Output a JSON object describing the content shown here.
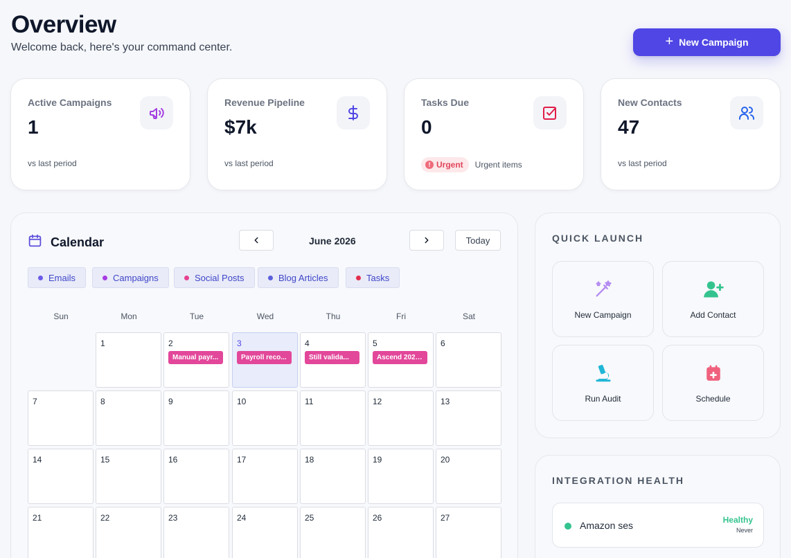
{
  "header": {
    "title": "Overview",
    "subtitle": "Welcome back, here's your command center.",
    "new_campaign_label": "New Campaign"
  },
  "stats": [
    {
      "label": "Active Campaigns",
      "value": "1",
      "foot": "vs last period",
      "icon": "megaphone-icon",
      "color": "#a43ee0"
    },
    {
      "label": "Revenue Pipeline",
      "value": "$7k",
      "foot": "vs last period",
      "icon": "dollar-icon",
      "color": "#4f46e5"
    },
    {
      "label": "Tasks Due",
      "value": "0",
      "badge": "Urgent",
      "badge_icon": "!",
      "foot": "Urgent items",
      "icon": "checkbox-icon",
      "color": "#e11d48"
    },
    {
      "label": "New Contacts",
      "value": "47",
      "foot": "vs last period",
      "icon": "users-icon",
      "color": "#2563eb"
    }
  ],
  "calendar": {
    "title": "Calendar",
    "month": "June 2026",
    "today_label": "Today",
    "filters": [
      {
        "label": "Emails",
        "color": "#6b5be8"
      },
      {
        "label": "Campaigns",
        "color": "#a63be3"
      },
      {
        "label": "Social Posts",
        "color": "#e5408f"
      },
      {
        "label": "Blog Articles",
        "color": "#5b5fdc"
      },
      {
        "label": "Tasks",
        "color": "#e22d4d"
      }
    ],
    "weekdays": [
      "Sun",
      "Mon",
      "Tue",
      "Wed",
      "Thu",
      "Fri",
      "Sat"
    ],
    "weeks": [
      [
        null,
        "1",
        "2",
        "3",
        "4",
        "5",
        "6"
      ],
      [
        "7",
        "8",
        "9",
        "10",
        "11",
        "12",
        "13"
      ],
      [
        "14",
        "15",
        "16",
        "17",
        "18",
        "19",
        "20"
      ],
      [
        "21",
        "22",
        "23",
        "24",
        "25",
        "26",
        "27"
      ]
    ],
    "today_day": "3",
    "events": [
      {
        "day": "2",
        "label": "Manual payr..."
      },
      {
        "day": "3",
        "label": "Payroll reco..."
      },
      {
        "day": "4",
        "label": "Still valida..."
      },
      {
        "day": "5",
        "label": "Ascend 2026 ..."
      }
    ]
  },
  "quick_launch": {
    "heading": "QUICK LAUNCH",
    "items": [
      {
        "label": "New Campaign",
        "icon": "magic-wand-icon",
        "color": "#b48cf2"
      },
      {
        "label": "Add Contact",
        "icon": "add-user-icon",
        "color": "#34c38f"
      },
      {
        "label": "Run Audit",
        "icon": "microscope-icon",
        "color": "#20b6d6"
      },
      {
        "label": "Schedule",
        "icon": "calendar-plus-icon",
        "color": "#f0617d"
      }
    ]
  },
  "integration_health": {
    "heading": "INTEGRATION HEALTH",
    "items": [
      {
        "name": "Amazon ses",
        "status": "Healthy",
        "last_checked": "Never",
        "status_color": "#34c38f"
      }
    ]
  }
}
